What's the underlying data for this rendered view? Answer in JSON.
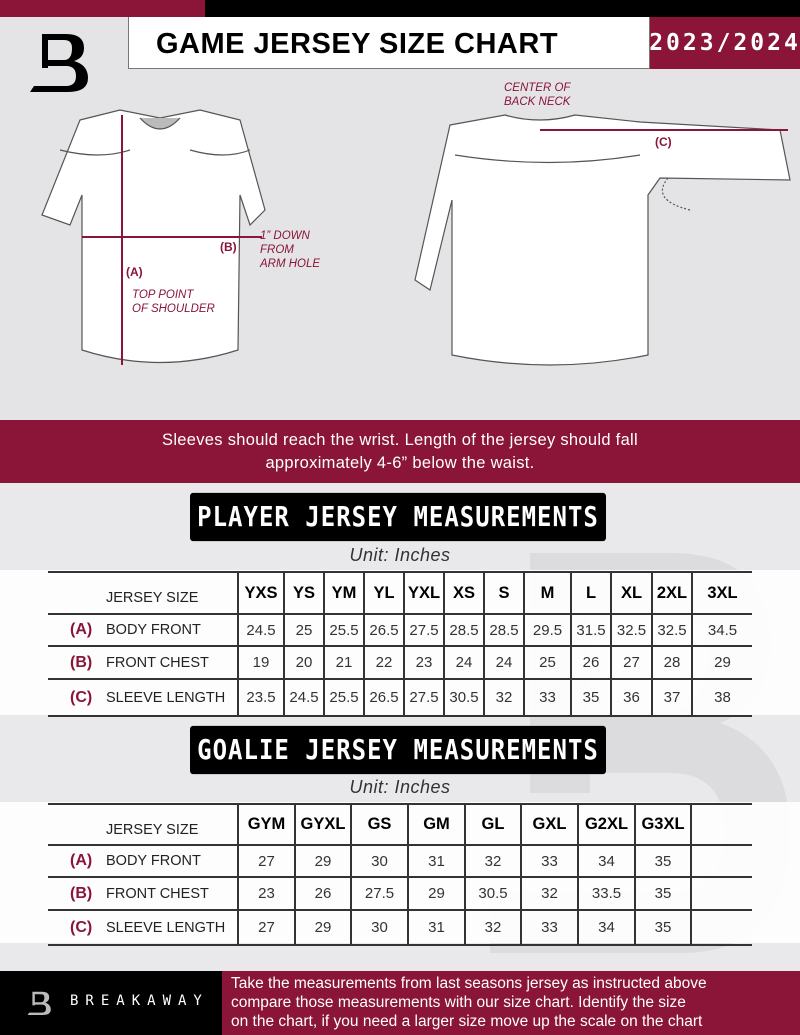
{
  "header": {
    "title": "GAME JERSEY SIZE CHART",
    "season": "2023/2024"
  },
  "diagram": {
    "center_back_neck": [
      "CENTER OF",
      "BACK NECK"
    ],
    "label_a": "(A)",
    "label_b": "(B)",
    "label_c": "(C)",
    "down_from_arm": [
      "1” DOWN",
      "FROM",
      "ARM HOLE"
    ],
    "top_shoulder": [
      "TOP POINT",
      "OF SHOULDER"
    ]
  },
  "band_text": [
    "Sleeves should reach the wrist. Length of the jersey should fall",
    "approximately 4-6” below the waist."
  ],
  "player": {
    "title": "PLAYER JERSEY MEASUREMENTS",
    "unit": "Unit: Inches",
    "header": "JERSEY SIZE",
    "sizes": [
      "YXS",
      "YS",
      "YM",
      "YL",
      "YXL",
      "XS",
      "S",
      "M",
      "L",
      "XL",
      "2XL",
      "3XL"
    ],
    "rows": [
      {
        "letter": "(A)",
        "name": "BODY FRONT",
        "values": [
          "24.5",
          "25",
          "25.5",
          "26.5",
          "27.5",
          "28.5",
          "28.5",
          "29.5",
          "31.5",
          "32.5",
          "32.5",
          "34.5"
        ]
      },
      {
        "letter": "(B)",
        "name": "FRONT CHEST",
        "values": [
          "19",
          "20",
          "21",
          "22",
          "23",
          "24",
          "24",
          "25",
          "26",
          "27",
          "28",
          "29"
        ]
      },
      {
        "letter": "(C)",
        "name": "SLEEVE LENGTH",
        "values": [
          "23.5",
          "24.5",
          "25.5",
          "26.5",
          "27.5",
          "30.5",
          "32",
          "33",
          "35",
          "36",
          "37",
          "38"
        ]
      }
    ]
  },
  "goalie": {
    "title": "GOALIE JERSEY MEASUREMENTS",
    "unit": "Unit: Inches",
    "header": "JERSEY SIZE",
    "sizes": [
      "GYM",
      "GYXL",
      "GS",
      "GM",
      "GL",
      "GXL",
      "G2XL",
      "G3XL",
      ""
    ],
    "rows": [
      {
        "letter": "(A)",
        "name": "BODY FRONT",
        "values": [
          "27",
          "29",
          "30",
          "31",
          "32",
          "33",
          "34",
          "35",
          ""
        ]
      },
      {
        "letter": "(B)",
        "name": "FRONT CHEST",
        "values": [
          "23",
          "26",
          "27.5",
          "29",
          "30.5",
          "32",
          "33.5",
          "35",
          ""
        ]
      },
      {
        "letter": "(C)",
        "name": "SLEEVE LENGTH",
        "values": [
          "27",
          "29",
          "30",
          "31",
          "32",
          "33",
          "34",
          "35",
          ""
        ]
      }
    ]
  },
  "footer": {
    "brand": "BREAKAWAY",
    "text": [
      "Take the measurements from last seasons jersey as instructed above",
      "compare those measurements  with our size chart. Identify the size",
      "on the chart, if you need a larger size move up the scale on the chart"
    ]
  },
  "colors": {
    "accent": "#8a1538",
    "dark": "#000000",
    "background": "#e4e4e6"
  }
}
